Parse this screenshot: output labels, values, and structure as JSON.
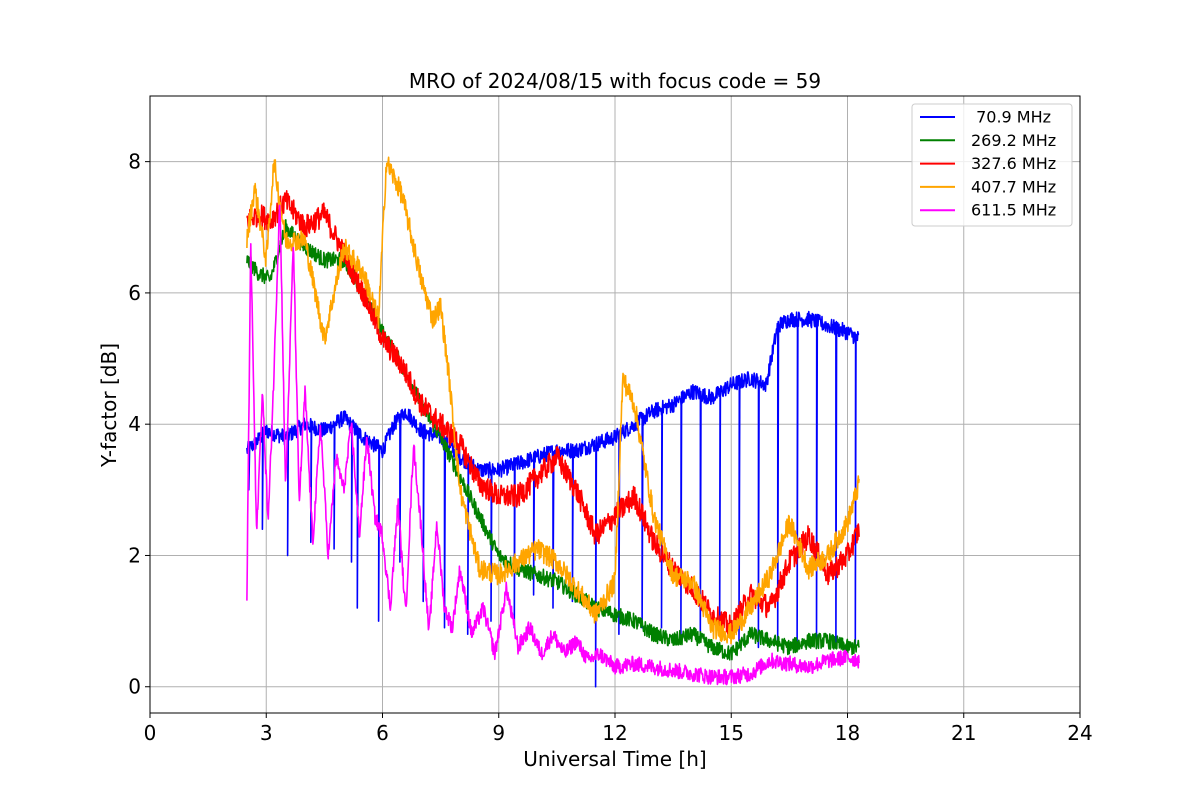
{
  "chart_data": {
    "type": "line",
    "title": "MRO of 2024/08/15 with focus code = 59",
    "xlabel": "Universal Time [h]",
    "ylabel": "Y-factor [dB]",
    "xlim": [
      0,
      24
    ],
    "ylim": [
      -0.4,
      9.0
    ],
    "xticks": [
      0,
      3,
      6,
      9,
      12,
      15,
      18,
      21,
      24
    ],
    "yticks": [
      0,
      2,
      4,
      6,
      8
    ],
    "grid": true,
    "legend_position": "top-right",
    "series": [
      {
        "name": "70.9 MHz",
        "legend_label": " 70.9 MHz",
        "color": "#0000ff",
        "x": [
          2.5,
          2.7,
          3.0,
          3.5,
          4.0,
          4.5,
          5.0,
          5.5,
          6.0,
          6.3,
          6.6,
          7.0,
          7.5,
          8.0,
          8.5,
          9.0,
          9.5,
          10.0,
          10.5,
          11.0,
          11.5,
          12.0,
          12.5,
          13.0,
          13.5,
          14.0,
          14.5,
          15.0,
          15.5,
          15.9,
          16.2,
          16.5,
          17.0,
          17.5,
          18.0,
          18.3
        ],
        "y": [
          3.6,
          3.7,
          3.9,
          3.8,
          4.0,
          3.9,
          4.1,
          3.8,
          3.6,
          4.0,
          4.2,
          3.9,
          3.8,
          3.5,
          3.3,
          3.3,
          3.4,
          3.5,
          3.6,
          3.6,
          3.7,
          3.8,
          4.0,
          4.2,
          4.3,
          4.5,
          4.4,
          4.6,
          4.7,
          4.6,
          5.5,
          5.6,
          5.6,
          5.5,
          5.4,
          5.3
        ],
        "dips": [
          [
            2.55,
            3.0
          ],
          [
            2.9,
            2.4
          ],
          [
            3.55,
            2.0
          ],
          [
            4.15,
            2.2
          ],
          [
            4.75,
            2.1
          ],
          [
            5.2,
            1.9
          ],
          [
            5.35,
            1.2
          ],
          [
            5.9,
            1.0
          ],
          [
            6.45,
            1.9
          ],
          [
            7.05,
            1.3
          ],
          [
            7.6,
            0.9
          ],
          [
            8.2,
            0.8
          ],
          [
            8.8,
            1.0
          ],
          [
            9.4,
            0.9
          ],
          [
            9.9,
            1.4
          ],
          [
            10.4,
            1.2
          ],
          [
            10.9,
            1.3
          ],
          [
            11.5,
            0.0
          ],
          [
            12.1,
            0.8
          ],
          [
            12.7,
            0.9
          ],
          [
            13.2,
            0.9
          ],
          [
            13.7,
            0.8
          ],
          [
            14.2,
            0.7
          ],
          [
            14.7,
            0.8
          ],
          [
            15.2,
            0.7
          ],
          [
            15.7,
            0.6
          ],
          [
            16.2,
            0.7
          ],
          [
            16.7,
            0.6
          ],
          [
            17.2,
            0.6
          ],
          [
            17.7,
            0.6
          ],
          [
            18.2,
            0.6
          ]
        ]
      },
      {
        "name": "269.2 MHz",
        "legend_label": "269.2 MHz",
        "color": "#008000",
        "x": [
          2.5,
          2.8,
          3.1,
          3.5,
          4.0,
          4.5,
          5.0,
          5.5,
          6.0,
          6.5,
          7.0,
          7.5,
          8.0,
          8.5,
          9.0,
          9.5,
          10.0,
          10.5,
          11.0,
          11.5,
          12.0,
          12.5,
          13.0,
          13.5,
          14.0,
          14.5,
          15.0,
          15.5,
          16.0,
          16.5,
          17.0,
          17.5,
          18.0,
          18.3
        ],
        "y": [
          6.5,
          6.3,
          6.2,
          7.0,
          6.7,
          6.5,
          6.5,
          6.0,
          5.4,
          4.9,
          4.3,
          3.8,
          3.2,
          2.6,
          2.0,
          1.8,
          1.7,
          1.6,
          1.4,
          1.2,
          1.1,
          1.0,
          0.8,
          0.7,
          0.8,
          0.6,
          0.5,
          0.8,
          0.7,
          0.6,
          0.7,
          0.7,
          0.6,
          0.6
        ]
      },
      {
        "name": "327.6 MHz",
        "legend_label": "327.6 MHz",
        "color": "#ff0000",
        "x": [
          2.5,
          2.8,
          3.1,
          3.5,
          4.0,
          4.5,
          5.0,
          5.5,
          6.0,
          6.5,
          7.0,
          7.5,
          8.0,
          8.5,
          9.0,
          9.5,
          10.0,
          10.5,
          11.0,
          11.5,
          12.0,
          12.5,
          13.0,
          13.5,
          14.0,
          14.5,
          15.0,
          15.5,
          16.0,
          16.5,
          17.0,
          17.5,
          18.0,
          18.3
        ],
        "y": [
          7.1,
          7.2,
          7.1,
          7.4,
          7.0,
          7.2,
          6.6,
          6.0,
          5.3,
          4.9,
          4.3,
          4.0,
          3.7,
          3.1,
          2.9,
          2.9,
          3.2,
          3.5,
          3.0,
          2.3,
          2.6,
          2.9,
          2.2,
          1.8,
          1.5,
          1.1,
          0.9,
          1.4,
          1.2,
          1.9,
          2.3,
          1.7,
          2.0,
          2.4
        ]
      },
      {
        "name": "407.7 MHz",
        "legend_label": "407.7 MHz",
        "color": "#ffa500",
        "x": [
          2.5,
          2.7,
          3.0,
          3.2,
          3.5,
          4.0,
          4.5,
          5.0,
          5.5,
          5.9,
          6.1,
          6.5,
          7.0,
          7.3,
          7.5,
          7.7,
          8.0,
          8.5,
          9.0,
          9.5,
          10.0,
          10.5,
          11.0,
          11.5,
          12.0,
          12.2,
          12.5,
          13.0,
          13.5,
          14.0,
          14.5,
          15.0,
          15.5,
          16.0,
          16.5,
          17.0,
          17.5,
          18.0,
          18.3
        ],
        "y": [
          6.8,
          7.6,
          6.5,
          8.0,
          6.8,
          6.8,
          5.3,
          6.7,
          6.3,
          5.6,
          8.0,
          7.5,
          6.2,
          5.6,
          5.8,
          4.8,
          3.0,
          1.8,
          1.7,
          1.9,
          2.1,
          1.9,
          1.5,
          1.1,
          1.6,
          4.7,
          4.3,
          2.6,
          1.7,
          1.6,
          0.9,
          0.8,
          1.2,
          1.7,
          2.5,
          1.8,
          2.0,
          2.5,
          3.1
        ]
      },
      {
        "name": "611.5 MHz",
        "legend_label": "611.5 MHz",
        "color": "#ff00ff",
        "x": [
          2.5,
          2.6,
          2.75,
          2.9,
          3.05,
          3.2,
          3.35,
          3.5,
          3.7,
          3.85,
          4.0,
          4.2,
          4.4,
          4.6,
          4.8,
          5.0,
          5.2,
          5.4,
          5.6,
          5.8,
          6.0,
          6.2,
          6.4,
          6.6,
          6.8,
          7.0,
          7.2,
          7.4,
          7.6,
          7.8,
          8.0,
          8.3,
          8.6,
          8.9,
          9.2,
          9.5,
          9.8,
          10.1,
          10.4,
          10.7,
          11.0,
          11.3,
          11.6,
          12.0,
          12.5,
          13.0,
          13.5,
          14.0,
          14.5,
          15.0,
          15.5,
          16.0,
          16.5,
          17.0,
          17.5,
          18.0,
          18.3
        ],
        "y": [
          1.3,
          6.8,
          2.3,
          4.5,
          2.5,
          4.8,
          7.5,
          3.0,
          6.8,
          2.8,
          4.5,
          2.2,
          4.0,
          2.0,
          3.5,
          3.0,
          4.0,
          2.3,
          3.8,
          2.6,
          2.3,
          1.2,
          2.8,
          1.1,
          3.7,
          2.4,
          0.8,
          2.5,
          1.2,
          0.9,
          1.8,
          0.8,
          1.2,
          0.5,
          1.5,
          0.6,
          0.9,
          0.5,
          0.8,
          0.5,
          0.7,
          0.4,
          0.5,
          0.3,
          0.35,
          0.3,
          0.25,
          0.2,
          0.15,
          0.15,
          0.2,
          0.4,
          0.35,
          0.3,
          0.4,
          0.45,
          0.4
        ]
      }
    ]
  }
}
